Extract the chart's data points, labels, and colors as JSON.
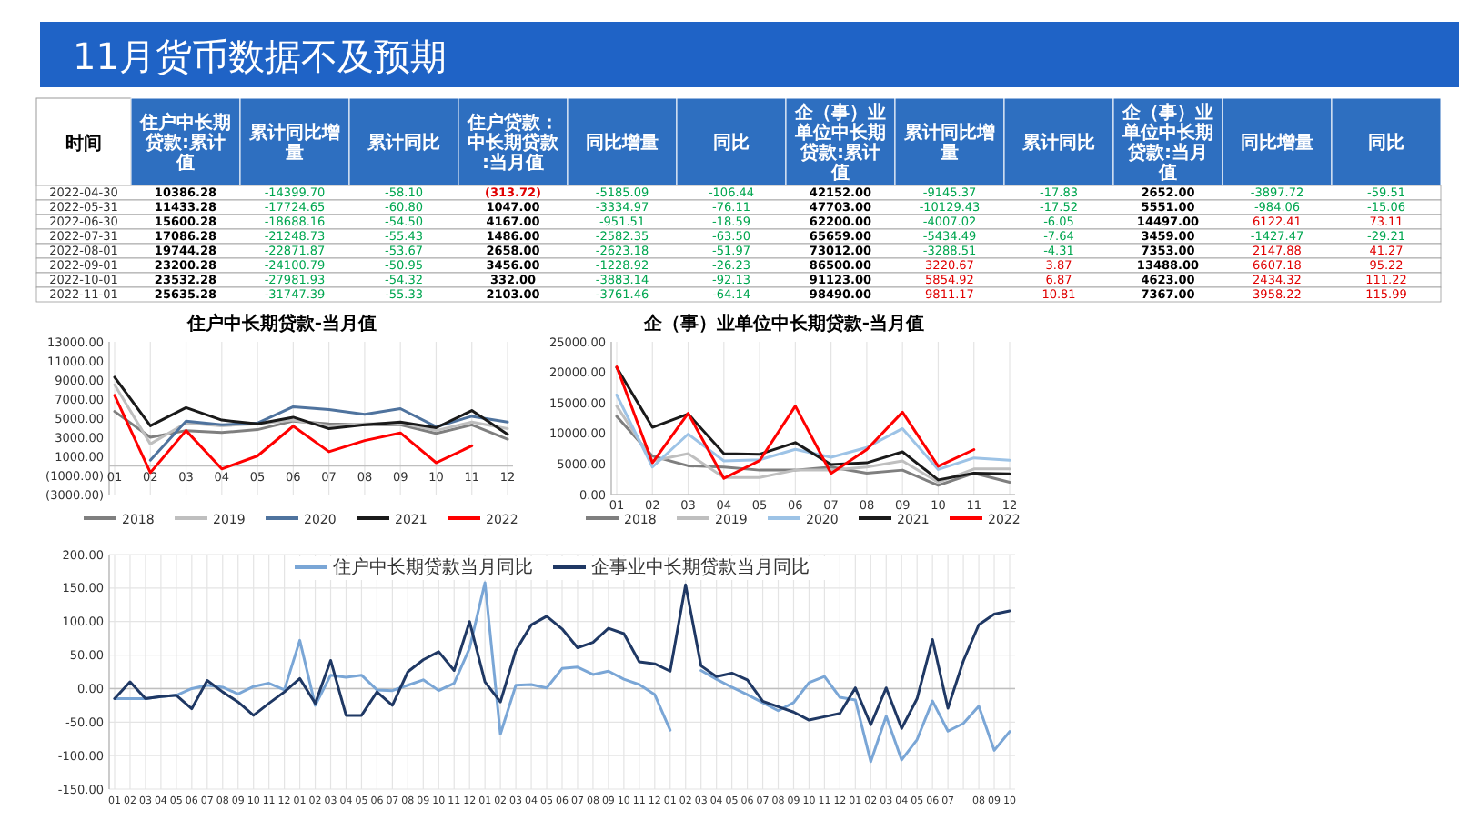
{
  "chart_data": [
    {
      "type": "heatmap",
      "title": "11月货币数据不及预期",
      "ylabel": "时间",
      "categories": [
        "住户中长期贷款:累计值",
        "累计同比增量",
        "累计同比",
        "住户贷款：中长期贷款:当月值",
        "同比增量",
        "同比",
        "企（事）业单位中长期贷款:累计值",
        "累计同比增量",
        "累计同比",
        "企（事）业单位中长期贷款:当月值",
        "同比增量",
        "同比"
      ],
      "y_categories": [
        "2022-04-30",
        "2022-05-31",
        "2022-06-30",
        "2022-07-31",
        "2022-08-01",
        "2022-09-01",
        "2022-10-01",
        "2022-11-01"
      ],
      "cells": [
        [
          10386.28,
          -14399.7,
          -58.1,
          -313.72,
          -5185.09,
          -106.44,
          42152.0,
          -9145.37,
          -17.83,
          2652.0,
          -3897.72,
          -59.51
        ],
        [
          11433.28,
          -17724.65,
          -60.8,
          1047.0,
          -3334.97,
          -76.11,
          47703.0,
          -10129.43,
          -17.52,
          5551.0,
          -984.06,
          -15.06
        ],
        [
          15600.28,
          -18688.16,
          -54.5,
          4167.0,
          -951.51,
          -18.59,
          62200.0,
          -4007.02,
          -6.05,
          14497.0,
          6122.41,
          73.11
        ],
        [
          17086.28,
          -21248.73,
          -55.43,
          1486.0,
          -2582.35,
          -63.5,
          65659.0,
          -5434.49,
          -7.64,
          3459.0,
          -1427.47,
          -29.21
        ],
        [
          19744.28,
          -22871.87,
          -53.67,
          2658.0,
          -2623.18,
          -51.97,
          73012.0,
          -3288.51,
          -4.31,
          7353.0,
          2147.88,
          41.27
        ],
        [
          23200.28,
          -24100.79,
          -50.95,
          3456.0,
          -1228.92,
          -26.23,
          86500.0,
          3220.67,
          3.87,
          13488.0,
          6607.18,
          95.22
        ],
        [
          23532.28,
          -27981.93,
          -54.32,
          332.0,
          -3883.14,
          -92.13,
          91123.0,
          5854.92,
          6.87,
          4623.0,
          2434.32,
          111.22
        ],
        [
          25635.28,
          -31747.39,
          -55.33,
          2103.0,
          -3761.46,
          -64.14,
          98490.0,
          9811.17,
          10.81,
          7367.0,
          3958.22,
          115.99
        ]
      ],
      "cell_labels": [
        [
          "10386.28",
          "-14399.70",
          "-58.10",
          "(313.72)",
          "-5185.09",
          "-106.44",
          "42152.00",
          "-9145.37",
          "-17.83",
          "2652.00",
          "-3897.72",
          "-59.51"
        ],
        [
          "11433.28",
          "-17724.65",
          "-60.80",
          "1047.00",
          "-3334.97",
          "-76.11",
          "47703.00",
          "-10129.43",
          "-17.52",
          "5551.00",
          "-984.06",
          "-15.06"
        ],
        [
          "15600.28",
          "-18688.16",
          "-54.50",
          "4167.00",
          "-951.51",
          "-18.59",
          "62200.00",
          "-4007.02",
          "-6.05",
          "14497.00",
          "6122.41",
          "73.11"
        ],
        [
          "17086.28",
          "-21248.73",
          "-55.43",
          "1486.00",
          "-2582.35",
          "-63.50",
          "65659.00",
          "-5434.49",
          "-7.64",
          "3459.00",
          "-1427.47",
          "-29.21"
        ],
        [
          "19744.28",
          "-22871.87",
          "-53.67",
          "2658.00",
          "-2623.18",
          "-51.97",
          "73012.00",
          "-3288.51",
          "-4.31",
          "7353.00",
          "2147.88",
          "41.27"
        ],
        [
          "23200.28",
          "-24100.79",
          "-50.95",
          "3456.00",
          "-1228.92",
          "-26.23",
          "86500.00",
          "3220.67",
          "3.87",
          "13488.00",
          "6607.18",
          "95.22"
        ],
        [
          "23532.28",
          "-27981.93",
          "-54.32",
          "332.00",
          "-3883.14",
          "-92.13",
          "91123.00",
          "5854.92",
          "6.87",
          "4623.00",
          "2434.32",
          "111.22"
        ],
        [
          "25635.28",
          "-31747.39",
          "-55.33",
          "2103.00",
          "-3761.46",
          "-64.14",
          "98490.00",
          "9811.17",
          "10.81",
          "7367.00",
          "3958.22",
          "115.99"
        ]
      ]
    },
    {
      "type": "line",
      "title": "住户中长期贷款-当月值",
      "categories": [
        "01",
        "02",
        "03",
        "04",
        "05",
        "06",
        "07",
        "08",
        "09",
        "10",
        "11",
        "12"
      ],
      "series": [
        {
          "name": "2018",
          "color": "#7f7f7f",
          "values": [
            5700,
            3000,
            3700,
            3500,
            3800,
            4700,
            4400,
            4300,
            4300,
            3400,
            4300,
            2800
          ]
        },
        {
          "name": "2019",
          "color": "#bfbfbf",
          "values": [
            8500,
            2300,
            4500,
            4200,
            4400,
            4800,
            4200,
            4400,
            4500,
            3700,
            4600,
            3900
          ]
        },
        {
          "name": "2020",
          "color": "#4f739e",
          "values": [
            null,
            600,
            4700,
            4300,
            4500,
            6200,
            5900,
            5400,
            6000,
            4100,
            5200,
            4600
          ]
        },
        {
          "name": "2021",
          "color": "#1a1a1a",
          "values": [
            9300,
            4200,
            6100,
            4800,
            4400,
            5100,
            3900,
            4300,
            4600,
            4000,
            5800,
            3300
          ]
        },
        {
          "name": "2022",
          "color": "#ff0000",
          "values": [
            7400,
            -700,
            3700,
            -313.72,
            1047,
            4167,
            1486,
            2658,
            3456,
            332,
            2103,
            null
          ]
        }
      ],
      "ylim": [
        -3000,
        13000
      ],
      "yticks": [
        {
          "value": -3000,
          "label": "(3000.00)"
        },
        {
          "value": -1000,
          "label": "(1000.00)"
        },
        {
          "value": 1000,
          "label": "1000.00"
        },
        {
          "value": 3000,
          "label": "3000.00"
        },
        {
          "value": 5000,
          "label": "5000.00"
        },
        {
          "value": 7000,
          "label": "7000.00"
        },
        {
          "value": 9000,
          "label": "9000.00"
        },
        {
          "value": 11000,
          "label": "11000.00"
        },
        {
          "value": 13000,
          "label": "13000.00"
        }
      ],
      "grid": "x",
      "legend": "bottom"
    },
    {
      "type": "line",
      "title": "企（事）业单位中长期贷款-当月值",
      "categories": [
        "01",
        "02",
        "03",
        "04",
        "05",
        "06",
        "07",
        "08",
        "09",
        "10",
        "11",
        "12"
      ],
      "series": [
        {
          "name": "2018",
          "color": "#7f7f7f",
          "values": [
            12800,
            6300,
            4700,
            4500,
            4000,
            4000,
            4500,
            3500,
            4000,
            1500,
            3500,
            2000
          ]
        },
        {
          "name": "2019",
          "color": "#bfbfbf",
          "values": [
            14500,
            5500,
            6700,
            2800,
            2800,
            4000,
            4000,
            4500,
            5500,
            2000,
            4200,
            4200
          ]
        },
        {
          "name": "2020",
          "color": "#9dc3e6",
          "values": [
            16300,
            4500,
            9900,
            5500,
            5700,
            7400,
            6100,
            7700,
            10800,
            4100,
            6000,
            5600
          ]
        },
        {
          "name": "2021",
          "color": "#1a1a1a",
          "values": [
            20800,
            11000,
            13200,
            6700,
            6600,
            8500,
            4900,
            5200,
            7000,
            2400,
            3500,
            3400
          ]
        },
        {
          "name": "2022",
          "color": "#ff0000",
          "values": [
            20900,
            5200,
            13300,
            2652,
            5551,
            14497,
            3459,
            7353,
            13488,
            4623,
            7367,
            null
          ]
        }
      ],
      "ylim": [
        0,
        25000
      ],
      "yticks": [
        {
          "value": 0,
          "label": "0.00"
        },
        {
          "value": 5000,
          "label": "5000.00"
        },
        {
          "value": 10000,
          "label": "10000.00"
        },
        {
          "value": 15000,
          "label": "15000.00"
        },
        {
          "value": 20000,
          "label": "20000.00"
        },
        {
          "value": 25000,
          "label": "25000.00"
        }
      ],
      "grid": "x",
      "legend": "bottom"
    },
    {
      "type": "line",
      "categories": [
        "01",
        "02",
        "03",
        "04",
        "05",
        "06",
        "07",
        "08",
        "09",
        "10",
        "11",
        "12",
        "01",
        "02",
        "03",
        "04",
        "05",
        "06",
        "07",
        "08",
        "09",
        "10",
        "11",
        "12",
        "01",
        "02",
        "03",
        "04",
        "05",
        "06",
        "07",
        "08",
        "09",
        "10",
        "11",
        "12",
        "01",
        "02",
        "03",
        "04",
        "05",
        "06",
        "07",
        "08",
        "09",
        "10",
        "11",
        "12",
        "01",
        "02",
        "03",
        "04",
        "05",
        "06",
        "07",
        null,
        "08",
        "09",
        "10"
      ],
      "series": [
        {
          "name": "住户中长期贷款当月同比",
          "color": "#7aa6d6",
          "values": [
            -15,
            -15,
            -15,
            -12,
            -10,
            0,
            5,
            2,
            -8,
            3,
            8,
            -2,
            72,
            -25,
            20,
            17,
            20,
            -2,
            -3,
            5,
            13,
            -3,
            8,
            60,
            158,
            -68,
            5,
            6,
            1,
            30,
            32,
            21,
            26,
            14,
            6,
            -9,
            -62,
            null,
            27,
            14,
            2,
            -9,
            -21,
            -33,
            -21,
            9,
            18,
            -13,
            -17,
            -109,
            -41,
            -106.44,
            -76.11,
            -18.59,
            -63.5,
            -51.97,
            -26.23,
            -92.13,
            -64.14
          ]
        },
        {
          "name": "企事业中长期贷款当月同比",
          "color": "#1f3864",
          "values": [
            -15,
            10,
            -15,
            -12,
            -10,
            -30,
            12,
            -5,
            -20,
            -40,
            -22,
            -5,
            15,
            -22,
            42,
            -40,
            -40,
            -5,
            -25,
            25,
            43,
            55,
            27,
            100,
            10,
            -20,
            57,
            95,
            108,
            89,
            61,
            69,
            90,
            82,
            40,
            37,
            26,
            155,
            34,
            18,
            23,
            13,
            -19,
            -27,
            -35,
            -47,
            -42,
            -37,
            1,
            -54,
            1,
            -59.51,
            -15.06,
            73.11,
            -29.21,
            41.27,
            95.22,
            111.22,
            115.99
          ]
        }
      ],
      "ylim": [
        -150,
        200
      ],
      "yticks": [
        {
          "value": -150,
          "label": "-150.00"
        },
        {
          "value": -100,
          "label": "-100.00"
        },
        {
          "value": -50,
          "label": "-50.00"
        },
        {
          "value": 0,
          "label": "0.00"
        },
        {
          "value": 50,
          "label": "50.00"
        },
        {
          "value": 100,
          "label": "100.00"
        },
        {
          "value": 150,
          "label": "150.00"
        },
        {
          "value": 200,
          "label": "200.00"
        }
      ],
      "grid": true,
      "legend": "top"
    }
  ]
}
